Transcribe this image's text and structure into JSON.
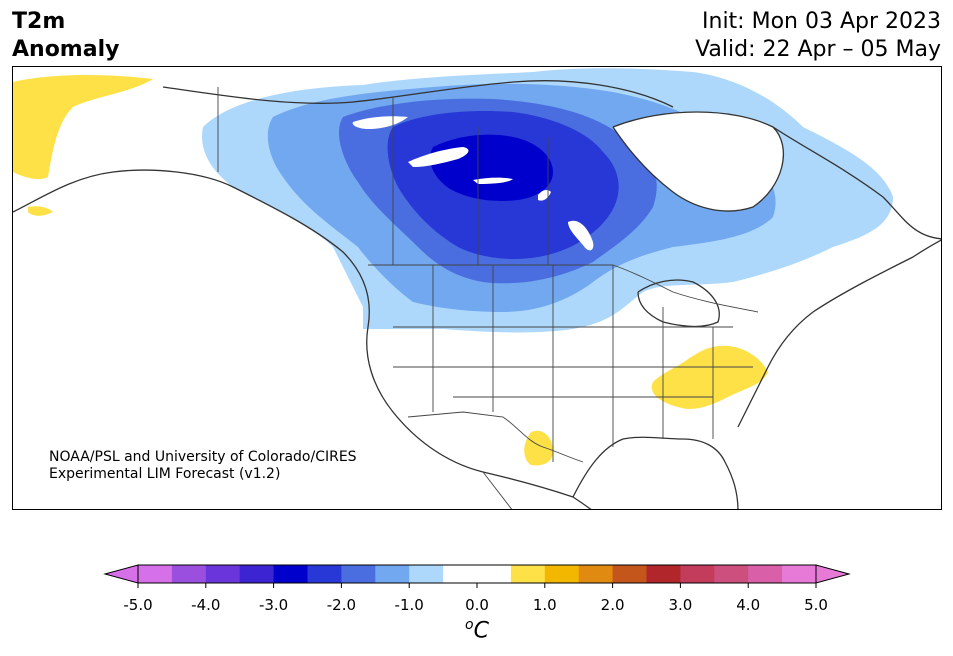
{
  "title": {
    "line1": "T2m",
    "line2": "Anomaly"
  },
  "header_right": {
    "init": "Init: Mon 03 Apr 2023",
    "valid": "Valid: 22 Apr – 05 May"
  },
  "credit": {
    "line1": "NOAA/PSL and University of Colorado/CIRES",
    "line2": "Experimental LIM Forecast (v1.2)"
  },
  "map": {
    "region": "North America",
    "variable": "2-meter temperature anomaly",
    "regions_shown": [
      {
        "name": "Canadian Prairies / central Canada",
        "anomaly": "below -3.0"
      },
      {
        "name": "Northern Plains US",
        "anomaly": "-1.0 to -2.0"
      },
      {
        "name": "Pacific Northwest / Northern Rockies",
        "anomaly": "-0.5 to -1.0"
      },
      {
        "name": "Eastern Canada / Quebec",
        "anomaly": "-0.5 to -1.5"
      },
      {
        "name": "Alaska",
        "anomaly": "+0.5 to +1.0"
      },
      {
        "name": "Southern Appalachians / Carolinas",
        "anomaly": "+0.5 to +1.0"
      },
      {
        "name": "West Texas",
        "anomaly": "+0.5 to +1.0"
      }
    ]
  },
  "colorbar": {
    "unit_base": "C",
    "unit_sup": "o",
    "ticks": [
      "-5.0",
      "-4.0",
      "-3.0",
      "-2.0",
      "-1.0",
      "0.0",
      "1.0",
      "2.0",
      "3.0",
      "4.0",
      "5.0"
    ],
    "bins": [
      -5.0,
      -4.5,
      -4.0,
      -3.5,
      -3.0,
      -2.5,
      -2.0,
      -1.5,
      -1.0,
      -0.5,
      0.5,
      1.0,
      1.5,
      2.0,
      2.5,
      3.0,
      3.5,
      4.0,
      4.5,
      5.0
    ],
    "colors": [
      "#d670e8",
      "#9b4fdf",
      "#6a36db",
      "#3d24d3",
      "#0000cd",
      "#2738d6",
      "#4a6ee0",
      "#72a8ef",
      "#aed8fb",
      "#ffffff",
      "#fde147",
      "#f4b700",
      "#e08a12",
      "#c4561b",
      "#b1262b",
      "#c43c5c",
      "#cc4f7e",
      "#d960a8",
      "#e87ad7"
    ],
    "under_color": "#d670e8",
    "over_color": "#e87ad7"
  }
}
